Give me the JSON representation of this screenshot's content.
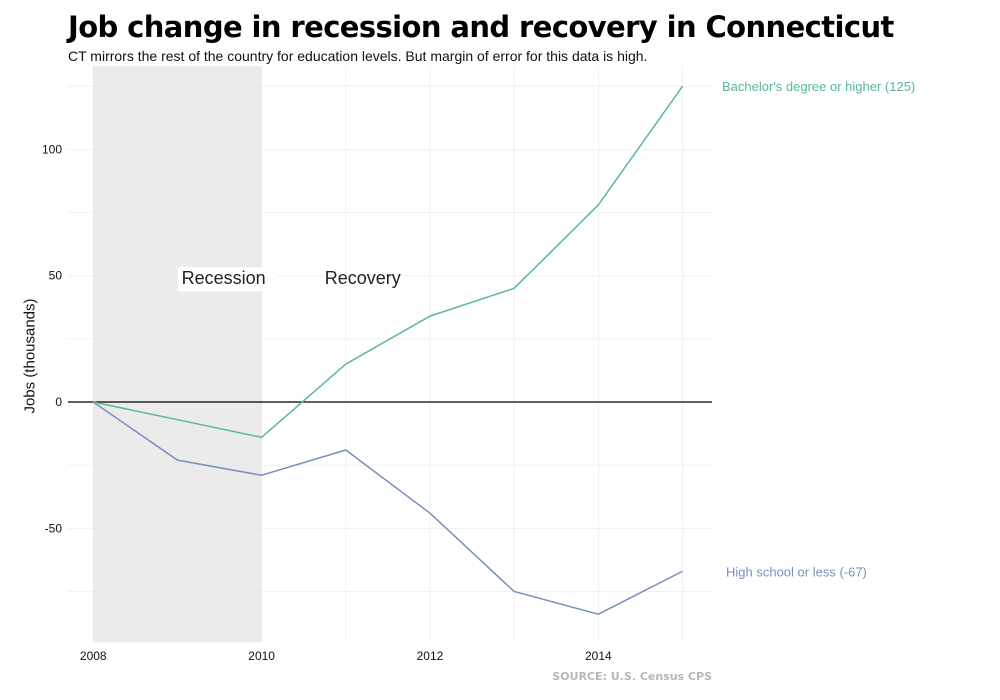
{
  "chart_data": {
    "type": "line",
    "title": "Job change in recession and recovery in Connecticut",
    "subtitle": "CT mirrors the rest of the country for education levels. But margin of error for this data is high.",
    "xlabel": "",
    "ylabel": "Jobs (thousands)",
    "source": "SOURCE: U.S. Census CPS",
    "x": [
      2008,
      2009,
      2010,
      2011,
      2012,
      2013,
      2014,
      2015
    ],
    "xlim": [
      2007.7,
      2015.35
    ],
    "ylim": [
      -95,
      133
    ],
    "x_ticks": [
      2008,
      2010,
      2012,
      2014
    ],
    "y_ticks": [
      -50,
      0,
      50,
      100
    ],
    "grid": true,
    "reference_line": 0,
    "shaded_region": {
      "x_start": 2008,
      "x_end": 2010,
      "color": "#ebebeb"
    },
    "annotations": [
      {
        "text": "Recession",
        "x": 2009.05,
        "y": 49
      },
      {
        "text": "Recovery",
        "x": 2010.75,
        "y": 49
      }
    ],
    "series": [
      {
        "label": "Bachelor's degree or higher (125)",
        "color": "#5bb891",
        "values": [
          0,
          -7,
          -14,
          15,
          34,
          45,
          78,
          125
        ]
      },
      {
        "label": "High school or less (-67)",
        "color": "#7a8fc0",
        "values": [
          0,
          -23,
          -29,
          -19,
          -44,
          -75,
          -84,
          -67
        ]
      }
    ]
  }
}
